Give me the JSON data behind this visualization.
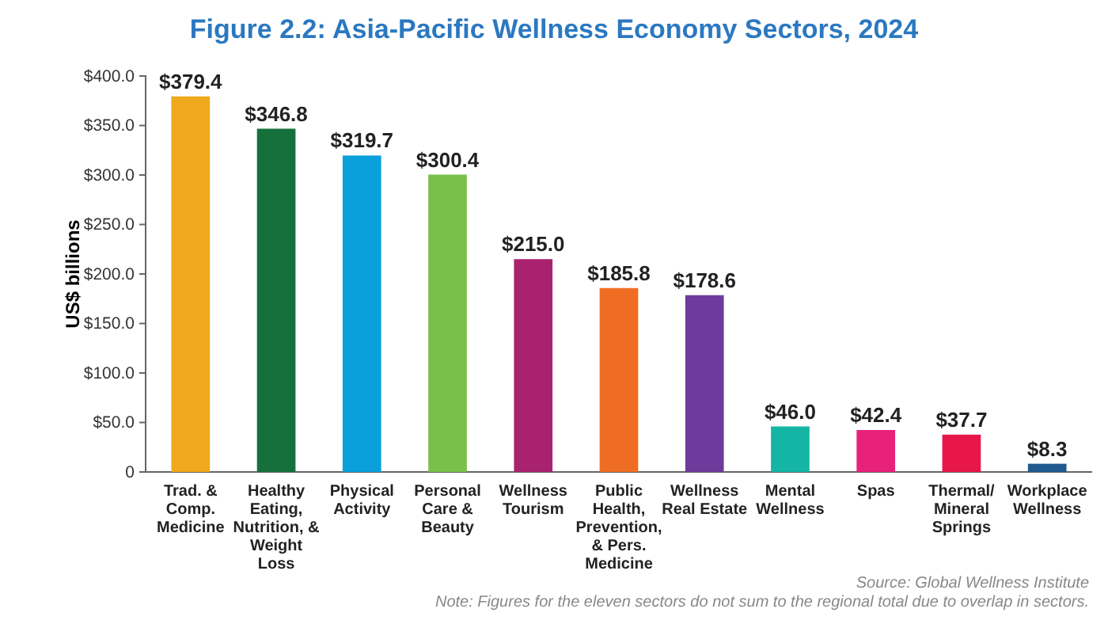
{
  "chart_data": {
    "type": "bar",
    "title": "Figure 2.2: Asia-Pacific Wellness Economy Sectors, 2024",
    "ylabel": "US$ billions",
    "categories": [
      "Trad. & Comp. Medicine",
      "Healthy Eating, Nutrition, & Weight Loss",
      "Physical Activity",
      "Personal Care & Beauty",
      "Wellness Tourism",
      "Public Health, Prevention, & Pers. Medicine",
      "Wellness Real Estate",
      "Mental Wellness",
      "Spas",
      "Thermal/ Mineral Springs",
      "Workplace Wellness"
    ],
    "values": [
      379.4,
      346.8,
      319.7,
      300.4,
      215.0,
      185.8,
      178.6,
      46.0,
      42.4,
      37.7,
      8.3
    ],
    "colors": [
      "#f0a81c",
      "#16703c",
      "#0aa0dc",
      "#79c04a",
      "#a8226f",
      "#ef6c23",
      "#6e3b9c",
      "#14b5a4",
      "#e8217a",
      "#e8174a",
      "#1f5a8e"
    ],
    "value_labels": [
      "$379.4",
      "$346.8",
      "$319.7",
      "$300.4",
      "$215.0",
      "$185.8",
      "$178.6",
      "$46.0",
      "$42.4",
      "$37.7",
      "$8.3"
    ],
    "ylim": [
      0,
      400
    ],
    "yticks": [
      {
        "value": 0,
        "label": "0"
      },
      {
        "value": 50,
        "label": "$50.0"
      },
      {
        "value": 100,
        "label": "$100.0"
      },
      {
        "value": 150,
        "label": "$150.0"
      },
      {
        "value": 200,
        "label": "$200.0"
      },
      {
        "value": 250,
        "label": "$250.0"
      },
      {
        "value": 300,
        "label": "$300.0"
      },
      {
        "value": 350,
        "label": "$350.0"
      },
      {
        "value": 400,
        "label": "$400.0"
      }
    ],
    "annotations": [
      "Source: Global Wellness Institute",
      "Note: Figures for the eleven sectors do not sum to the regional total due to overlap in sectors."
    ]
  }
}
